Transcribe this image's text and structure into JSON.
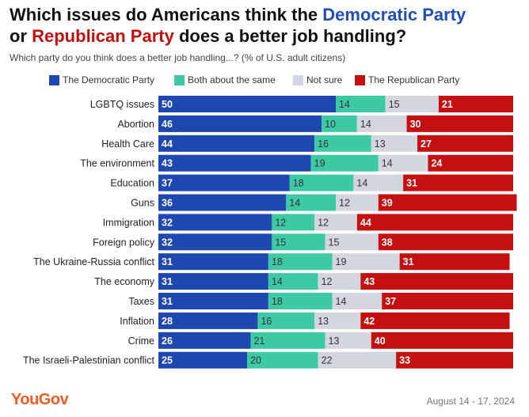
{
  "header": {
    "title_part1": "Which issues do Americans think the ",
    "title_dem": "Democratic Party",
    "title_or": "or ",
    "title_rep": "Republican Party",
    "title_part2": " does a better job handling?",
    "subtitle": "Which party do you think does a better job handling...? (% of U.S. adult citizens)"
  },
  "legend": [
    {
      "label": "The Democratic Party",
      "color": "#1f47b0"
    },
    {
      "label": "Both about the same",
      "color": "#3ec9a5"
    },
    {
      "label": "Not sure",
      "color": "#d3d6de"
    },
    {
      "label": "The Republican Party",
      "color": "#c41010"
    }
  ],
  "chart_data": {
    "type": "bar",
    "orientation": "horizontal",
    "stacked": true,
    "categories": [
      "LGBTQ issues",
      "Abortion",
      "Health Care",
      "The environment",
      "Education",
      "Guns",
      "Immigration",
      "Foreign policy",
      "The Ukraine-Russia conflict",
      "The economy",
      "Taxes",
      "Inflation",
      "Crime",
      "The Israeli-Palestinian conflict"
    ],
    "series": [
      {
        "name": "The Democratic Party",
        "color": "#1f47b0",
        "values": [
          50,
          46,
          44,
          43,
          37,
          36,
          32,
          32,
          31,
          31,
          31,
          28,
          26,
          25
        ]
      },
      {
        "name": "Both about the same",
        "color": "#3ec9a5",
        "values": [
          14,
          10,
          16,
          19,
          18,
          14,
          12,
          15,
          18,
          14,
          18,
          16,
          21,
          20
        ]
      },
      {
        "name": "Not sure",
        "color": "#d3d6de",
        "values": [
          15,
          14,
          13,
          14,
          14,
          12,
          12,
          15,
          19,
          12,
          14,
          13,
          13,
          22
        ]
      },
      {
        "name": "The Republican Party",
        "color": "#c41010",
        "values": [
          21,
          30,
          27,
          24,
          31,
          39,
          44,
          38,
          31,
          43,
          37,
          42,
          40,
          33
        ]
      }
    ]
  },
  "footer": {
    "brand": "YouGov",
    "date": "August 14 - 17, 2024"
  }
}
